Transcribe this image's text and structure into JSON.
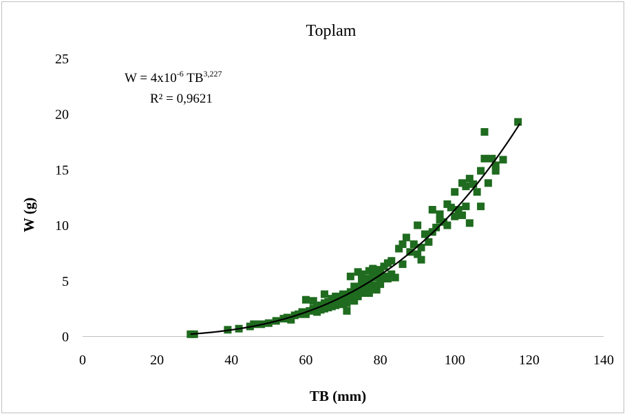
{
  "chart_data": {
    "type": "scatter",
    "title": "Toplam",
    "xlabel": "TB (mm)",
    "ylabel": "W (g)",
    "xlim": [
      0,
      140
    ],
    "ylim": [
      0,
      25
    ],
    "xticks": [
      "0",
      "20",
      "40",
      "60",
      "80",
      "100",
      "120",
      "140"
    ],
    "yticks": [
      "0",
      "5",
      "10",
      "15",
      "20",
      "25"
    ],
    "grid": false,
    "legend": "none",
    "marker_color": "#1f6b1f",
    "trend_color": "#000000",
    "equation": {
      "prefix": "W = 4x10",
      "exp1": "-6",
      "mid": " TB",
      "exp2": "3,227",
      "r2": "R² = 0,9621"
    },
    "trendline": {
      "a": 4e-06,
      "b": 3.227,
      "x_start": 29,
      "x_end": 117.5
    },
    "points": [
      [
        29,
        0.2
      ],
      [
        30,
        0.2
      ],
      [
        39,
        0.6
      ],
      [
        42,
        0.7
      ],
      [
        45,
        0.9
      ],
      [
        46,
        1.1
      ],
      [
        48,
        1.1
      ],
      [
        50,
        1.2
      ],
      [
        52,
        1.4
      ],
      [
        54,
        1.6
      ],
      [
        55,
        1.7
      ],
      [
        56,
        1.5
      ],
      [
        57,
        1.9
      ],
      [
        58,
        2.0
      ],
      [
        59,
        2.2
      ],
      [
        60,
        3.3
      ],
      [
        60,
        2.0
      ],
      [
        61,
        2.3
      ],
      [
        62,
        2.5
      ],
      [
        62,
        3.2
      ],
      [
        63,
        2.2
      ],
      [
        63,
        2.6
      ],
      [
        64,
        2.8
      ],
      [
        64,
        2.4
      ],
      [
        65,
        3.0
      ],
      [
        65,
        2.5
      ],
      [
        65,
        3.8
      ],
      [
        66,
        2.6
      ],
      [
        66,
        3.1
      ],
      [
        67,
        2.7
      ],
      [
        67,
        3.4
      ],
      [
        68,
        3.0
      ],
      [
        68,
        2.8
      ],
      [
        68,
        3.6
      ],
      [
        69,
        3.2
      ],
      [
        69,
        2.9
      ],
      [
        70,
        3.3
      ],
      [
        70,
        3.8
      ],
      [
        70,
        2.9
      ],
      [
        71,
        3.5
      ],
      [
        71,
        2.3
      ],
      [
        71,
        3.0
      ],
      [
        72,
        5.4
      ],
      [
        72,
        3.6
      ],
      [
        72,
        4.0
      ],
      [
        73,
        3.8
      ],
      [
        73,
        3.2
      ],
      [
        73,
        4.5
      ],
      [
        74,
        4.2
      ],
      [
        74,
        5.8
      ],
      [
        74,
        3.6
      ],
      [
        75,
        4.5
      ],
      [
        75,
        5.0
      ],
      [
        75,
        3.9
      ],
      [
        75,
        5.6
      ],
      [
        76,
        4.8
      ],
      [
        76,
        4.0
      ],
      [
        76,
        5.2
      ],
      [
        77,
        5.0
      ],
      [
        77,
        4.3
      ],
      [
        77,
        5.9
      ],
      [
        77,
        3.9
      ],
      [
        78,
        5.3
      ],
      [
        78,
        6.1
      ],
      [
        78,
        4.6
      ],
      [
        79,
        5.5
      ],
      [
        79,
        4.2
      ],
      [
        79,
        6.0
      ],
      [
        80,
        5.0
      ],
      [
        80,
        5.8
      ],
      [
        80,
        4.7
      ],
      [
        81,
        6.3
      ],
      [
        81,
        5.4
      ],
      [
        82,
        5.2
      ],
      [
        82,
        6.6
      ],
      [
        83,
        5.6
      ],
      [
        83,
        6.8
      ],
      [
        84,
        5.3
      ],
      [
        85,
        7.9
      ],
      [
        86,
        6.5
      ],
      [
        86,
        8.3
      ],
      [
        87,
        8.9
      ],
      [
        88,
        7.6
      ],
      [
        89,
        8.3
      ],
      [
        90,
        10.0
      ],
      [
        90,
        7.4
      ],
      [
        91,
        6.9
      ],
      [
        91,
        8.0
      ],
      [
        92,
        9.2
      ],
      [
        93,
        8.5
      ],
      [
        94,
        9.4
      ],
      [
        94,
        11.4
      ],
      [
        95,
        9.8
      ],
      [
        96,
        11.0
      ],
      [
        96,
        10.5
      ],
      [
        97,
        10.3
      ],
      [
        98,
        11.9
      ],
      [
        98,
        10.0
      ],
      [
        99,
        11.6
      ],
      [
        100,
        13.0
      ],
      [
        100,
        10.8
      ],
      [
        101,
        11.4
      ],
      [
        102,
        13.8
      ],
      [
        102,
        10.9
      ],
      [
        103,
        11.7
      ],
      [
        103,
        13.5
      ],
      [
        104,
        10.2
      ],
      [
        104,
        14.2
      ],
      [
        105,
        13.7
      ],
      [
        106,
        13.0
      ],
      [
        107,
        11.7
      ],
      [
        107,
        14.9
      ],
      [
        108,
        16.0
      ],
      [
        108,
        18.4
      ],
      [
        109,
        13.8
      ],
      [
        110,
        16.0
      ],
      [
        111,
        15.4
      ],
      [
        111,
        14.9
      ],
      [
        113,
        15.9
      ],
      [
        117,
        19.3
      ]
    ]
  }
}
